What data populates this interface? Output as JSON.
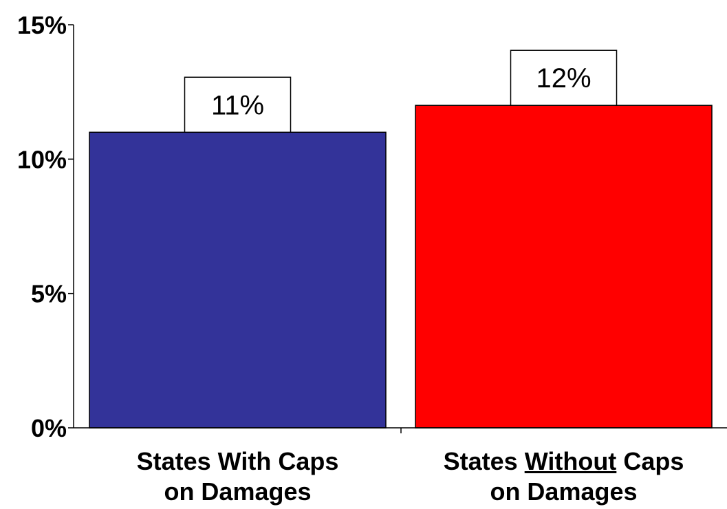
{
  "chart_data": {
    "type": "bar",
    "title": "",
    "xlabel": "",
    "ylabel": "",
    "ylim": [
      0,
      15
    ],
    "yticks": [
      0,
      5,
      10,
      15
    ],
    "ytick_labels": [
      "0%",
      "5%",
      "10%",
      "15%"
    ],
    "grid": false,
    "legend": "none",
    "categories": [
      {
        "line1_parts": [
          {
            "text": "States With Caps",
            "underline": false
          }
        ],
        "line2": "on Damages"
      },
      {
        "line1_parts": [
          {
            "text": "States ",
            "underline": false
          },
          {
            "text": "Without",
            "underline": true
          },
          {
            "text": " Caps",
            "underline": false
          }
        ],
        "line2": "on Damages"
      }
    ],
    "values": [
      11,
      12
    ],
    "data_labels": [
      "11%",
      "12%"
    ],
    "colors": [
      "#333399",
      "#ff0000"
    ]
  }
}
